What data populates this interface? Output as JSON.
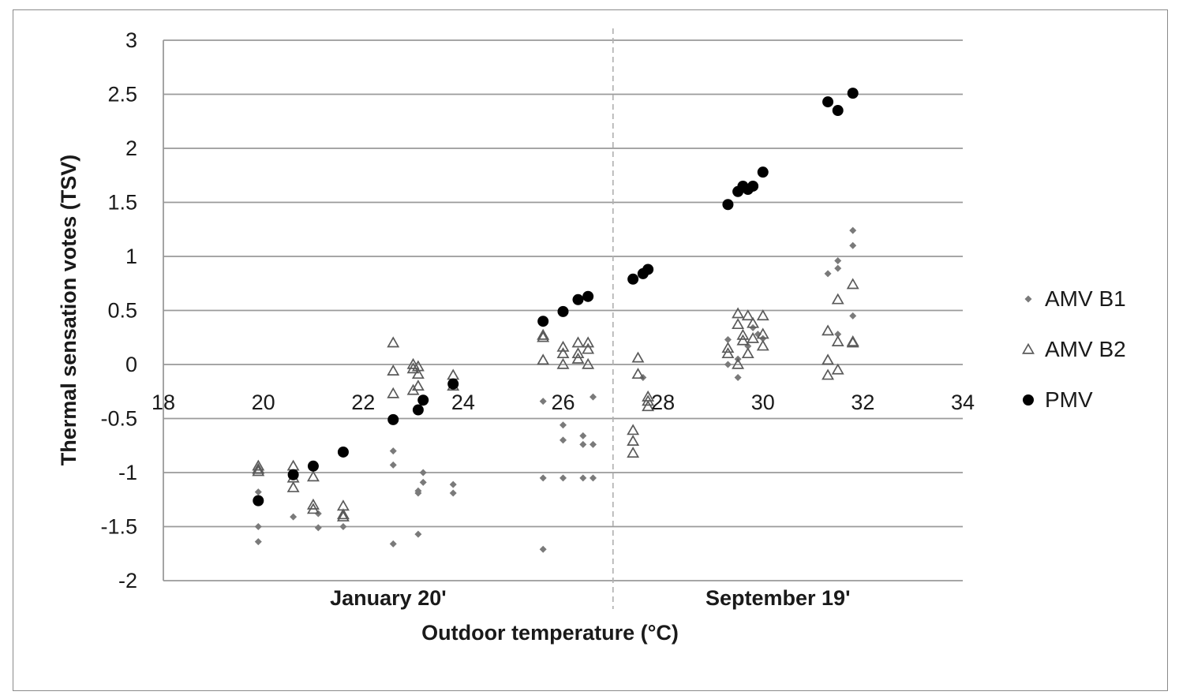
{
  "chart_data": {
    "type": "scatter",
    "title": "",
    "xlabel": "Outdoor temperature (°C)",
    "ylabel": "Thermal sensation votes (TSV)",
    "xlim": [
      18,
      34
    ],
    "ylim": [
      -2,
      3
    ],
    "x_ticks": [
      18,
      20,
      22,
      24,
      26,
      28,
      30,
      32,
      34
    ],
    "y_ticks": [
      -2,
      -1.5,
      -1,
      -0.5,
      0,
      0.5,
      1,
      1.5,
      2,
      2.5,
      3
    ],
    "y_tick_labels": [
      "-2",
      "-1.5",
      "-1",
      "-0.5",
      "0",
      "0.5",
      "1",
      "1.5",
      "2",
      "2.5",
      "3"
    ],
    "grid": "horizontal",
    "legend_position": "right",
    "divider_x": 27,
    "period_labels": [
      {
        "text": "January 20'",
        "x": 22.5
      },
      {
        "text": "September 19'",
        "x": 30.3
      }
    ],
    "series": [
      {
        "name": "AMV B1",
        "marker": "diamond",
        "color": "#7a7a7a",
        "points": [
          [
            19.9,
            -1.18
          ],
          [
            19.9,
            -1.5
          ],
          [
            19.9,
            -1.64
          ],
          [
            20.6,
            -1.41
          ],
          [
            21.1,
            -1.38
          ],
          [
            21.1,
            -1.51
          ],
          [
            21.6,
            -1.5
          ],
          [
            22.6,
            -0.8
          ],
          [
            22.6,
            -0.93
          ],
          [
            22.6,
            -1.66
          ],
          [
            23.1,
            -1.17
          ],
          [
            23.1,
            -1.19
          ],
          [
            23.1,
            -1.57
          ],
          [
            23.2,
            -1.0
          ],
          [
            23.2,
            -1.09
          ],
          [
            23.8,
            -1.11
          ],
          [
            23.8,
            -1.19
          ],
          [
            25.6,
            -0.34
          ],
          [
            25.6,
            -1.05
          ],
          [
            25.6,
            -1.71
          ],
          [
            26.0,
            -0.56
          ],
          [
            26.0,
            -0.7
          ],
          [
            26.0,
            -1.05
          ],
          [
            26.4,
            -0.66
          ],
          [
            26.4,
            -0.74
          ],
          [
            26.4,
            -1.05
          ],
          [
            26.6,
            -0.3
          ],
          [
            26.6,
            -0.74
          ],
          [
            26.6,
            -1.05
          ],
          [
            27.6,
            -0.12
          ],
          [
            29.3,
            0.23
          ],
          [
            29.3,
            0.0
          ],
          [
            29.5,
            0.05
          ],
          [
            29.5,
            -0.12
          ],
          [
            29.7,
            0.17
          ],
          [
            29.8,
            0.34
          ],
          [
            29.9,
            0.28
          ],
          [
            30.0,
            0.24
          ],
          [
            31.3,
            0.84
          ],
          [
            31.5,
            0.96
          ],
          [
            31.5,
            0.89
          ],
          [
            31.5,
            0.28
          ],
          [
            31.8,
            1.24
          ],
          [
            31.8,
            1.1
          ],
          [
            31.8,
            0.45
          ]
        ]
      },
      {
        "name": "AMV B2",
        "marker": "triangle-open",
        "color": "#5a5a5a",
        "points": [
          [
            19.9,
            -0.94
          ],
          [
            19.9,
            -0.97
          ],
          [
            19.9,
            -0.99
          ],
          [
            20.6,
            -0.94
          ],
          [
            20.6,
            -1.05
          ],
          [
            20.6,
            -1.14
          ],
          [
            21.0,
            -1.04
          ],
          [
            21.0,
            -1.3
          ],
          [
            21.0,
            -1.34
          ],
          [
            21.6,
            -1.31
          ],
          [
            21.6,
            -1.39
          ],
          [
            21.6,
            -1.41
          ],
          [
            22.6,
            0.2
          ],
          [
            22.6,
            -0.06
          ],
          [
            22.6,
            -0.27
          ],
          [
            23.0,
            0.0
          ],
          [
            23.0,
            -0.04
          ],
          [
            23.0,
            -0.24
          ],
          [
            23.1,
            -0.02
          ],
          [
            23.1,
            -0.09
          ],
          [
            23.1,
            -0.2
          ],
          [
            23.8,
            -0.1
          ],
          [
            23.8,
            -0.2
          ],
          [
            25.6,
            0.27
          ],
          [
            25.6,
            0.25
          ],
          [
            25.6,
            0.04
          ],
          [
            26.0,
            0.16
          ],
          [
            26.0,
            0.1
          ],
          [
            26.0,
            0.0
          ],
          [
            26.3,
            0.2
          ],
          [
            26.3,
            0.1
          ],
          [
            26.3,
            0.05
          ],
          [
            26.5,
            0.2
          ],
          [
            26.5,
            0.14
          ],
          [
            26.5,
            0.0
          ],
          [
            27.5,
            0.06
          ],
          [
            27.5,
            -0.09
          ],
          [
            27.4,
            -0.61
          ],
          [
            27.4,
            -0.71
          ],
          [
            27.4,
            -0.82
          ],
          [
            27.7,
            -0.3
          ],
          [
            27.7,
            -0.34
          ],
          [
            27.7,
            -0.39
          ],
          [
            29.3,
            0.15
          ],
          [
            29.3,
            0.1
          ],
          [
            29.5,
            0.47
          ],
          [
            29.5,
            0.37
          ],
          [
            29.5,
            0.0
          ],
          [
            29.6,
            0.27
          ],
          [
            29.6,
            0.22
          ],
          [
            29.7,
            0.45
          ],
          [
            29.7,
            0.1
          ],
          [
            29.8,
            0.38
          ],
          [
            29.8,
            0.24
          ],
          [
            30.0,
            0.45
          ],
          [
            30.0,
            0.28
          ],
          [
            30.0,
            0.17
          ],
          [
            31.3,
            0.31
          ],
          [
            31.3,
            0.04
          ],
          [
            31.3,
            -0.1
          ],
          [
            31.5,
            0.6
          ],
          [
            31.5,
            0.21
          ],
          [
            31.5,
            -0.05
          ],
          [
            31.8,
            0.74
          ],
          [
            31.8,
            0.21
          ],
          [
            31.8,
            0.2
          ]
        ]
      },
      {
        "name": "PMV",
        "marker": "circle-filled",
        "color": "#000000",
        "points": [
          [
            19.9,
            -1.26
          ],
          [
            20.6,
            -1.02
          ],
          [
            21.0,
            -0.94
          ],
          [
            21.6,
            -0.81
          ],
          [
            22.6,
            -0.51
          ],
          [
            23.1,
            -0.42
          ],
          [
            23.2,
            -0.33
          ],
          [
            23.8,
            -0.18
          ],
          [
            25.6,
            0.4
          ],
          [
            26.0,
            0.49
          ],
          [
            26.3,
            0.6
          ],
          [
            26.5,
            0.63
          ],
          [
            27.4,
            0.79
          ],
          [
            27.6,
            0.84
          ],
          [
            27.7,
            0.88
          ],
          [
            29.3,
            1.48
          ],
          [
            29.5,
            1.6
          ],
          [
            29.6,
            1.65
          ],
          [
            29.7,
            1.62
          ],
          [
            29.8,
            1.65
          ],
          [
            30.0,
            1.78
          ],
          [
            31.3,
            2.43
          ],
          [
            31.5,
            2.35
          ],
          [
            31.8,
            2.51
          ]
        ]
      }
    ]
  }
}
